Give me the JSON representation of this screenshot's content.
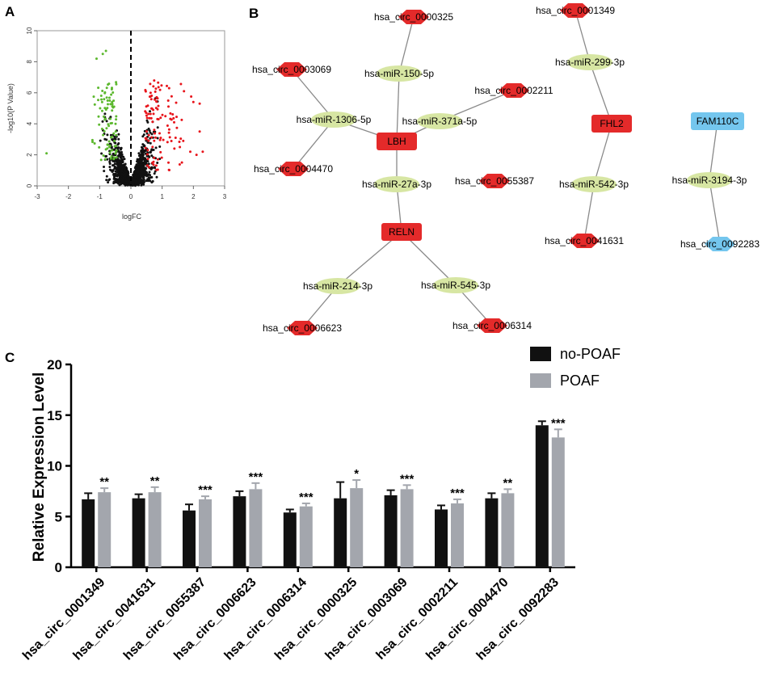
{
  "panels": {
    "a": "A",
    "b": "B",
    "c": "C"
  },
  "volcano": {
    "xlabel": "logFC",
    "ylabel": "-log10(P Value)",
    "xlim": [
      -3,
      3
    ],
    "ylim": [
      0,
      10
    ],
    "x_ticks": [
      -3,
      -2,
      -1,
      0,
      1,
      2,
      3
    ],
    "y_ticks": [
      0,
      2,
      4,
      6,
      8,
      10
    ],
    "threshold_logFC": 0,
    "colors": {
      "down": "#5cb82e",
      "up": "#e8141b",
      "ns": "#111111",
      "threshold": "#000000",
      "frame": "#999999"
    }
  },
  "network": {
    "colors": {
      "mrna_red": "#e42a2a",
      "mrna_blue": "#74c6ee",
      "circ_red": "#e42a2a",
      "circ_blue": "#74c6ee",
      "mirna": "#d7e6a3",
      "edge": "#8a8a8a"
    },
    "nodes": [
      {
        "id": "LBH",
        "label": "LBH",
        "kind": "mrna",
        "color": "red"
      },
      {
        "id": "RELN",
        "label": "RELN",
        "kind": "mrna",
        "color": "red"
      },
      {
        "id": "FHL2",
        "label": "FHL2",
        "kind": "mrna",
        "color": "red"
      },
      {
        "id": "FAM110C",
        "label": "FAM110C",
        "kind": "mrna",
        "color": "blue"
      },
      {
        "id": "m150",
        "label": "hsa-miR-150-5p",
        "kind": "mirna"
      },
      {
        "id": "m1306",
        "label": "hsa-miR-1306-5p",
        "kind": "mirna"
      },
      {
        "id": "m371",
        "label": "hsa-miR-371a-5p",
        "kind": "mirna"
      },
      {
        "id": "m27a",
        "label": "hsa-miR-27a-3p",
        "kind": "mirna"
      },
      {
        "id": "m214",
        "label": "hsa-miR-214-3p",
        "kind": "mirna"
      },
      {
        "id": "m545",
        "label": "hsa-miR-545-3p",
        "kind": "mirna"
      },
      {
        "id": "m299",
        "label": "hsa-miR-299-3p",
        "kind": "mirna"
      },
      {
        "id": "m542",
        "label": "hsa-miR-542-3p",
        "kind": "mirna"
      },
      {
        "id": "m3194",
        "label": "hsa-miR-3194-3p",
        "kind": "mirna"
      },
      {
        "id": "c0000325",
        "label": "hsa_circ_0000325",
        "kind": "circ",
        "color": "red"
      },
      {
        "id": "c0003069",
        "label": "hsa_circ_0003069",
        "kind": "circ",
        "color": "red"
      },
      {
        "id": "c0002211",
        "label": "hsa_circ_0002211",
        "kind": "circ",
        "color": "red"
      },
      {
        "id": "c0004470",
        "label": "hsa_circ_0004470",
        "kind": "circ",
        "color": "red"
      },
      {
        "id": "c0055387",
        "label": "hsa_circ_0055387",
        "kind": "circ",
        "color": "red"
      },
      {
        "id": "c0006623",
        "label": "hsa_circ_0006623",
        "kind": "circ",
        "color": "red"
      },
      {
        "id": "c0006314",
        "label": "hsa_circ_0006314",
        "kind": "circ",
        "color": "red"
      },
      {
        "id": "c0001349",
        "label": "hsa_circ_0001349",
        "kind": "circ",
        "color": "red"
      },
      {
        "id": "c0041631",
        "label": "hsa_circ_0041631",
        "kind": "circ",
        "color": "red"
      },
      {
        "id": "c0092283",
        "label": "hsa_circ_0092283",
        "kind": "circ",
        "color": "blue"
      }
    ],
    "edges": [
      [
        "c0000325",
        "m150"
      ],
      [
        "m150",
        "LBH"
      ],
      [
        "c0003069",
        "m1306"
      ],
      [
        "c0004470",
        "m1306"
      ],
      [
        "m1306",
        "LBH"
      ],
      [
        "c0002211",
        "m371"
      ],
      [
        "m371",
        "LBH"
      ],
      [
        "LBH",
        "m27a"
      ],
      [
        "m27a",
        "RELN"
      ],
      [
        "RELN",
        "m214"
      ],
      [
        "m214",
        "c0006623"
      ],
      [
        "RELN",
        "m545"
      ],
      [
        "m545",
        "c0006314"
      ],
      [
        "c0001349",
        "m299"
      ],
      [
        "m299",
        "FHL2"
      ],
      [
        "FHL2",
        "m542"
      ],
      [
        "m542",
        "c0041631"
      ],
      [
        "FAM110C",
        "m3194"
      ],
      [
        "m3194",
        "c0092283"
      ]
    ]
  },
  "chart_data": {
    "type": "bar",
    "ylabel": "Relative Expression Level",
    "xlabel": "",
    "ylim": [
      0,
      20
    ],
    "y_ticks": [
      0,
      5,
      10,
      15,
      20
    ],
    "categories": [
      "hsa_circ_0001349",
      "hsa_circ_0041631",
      "hsa_circ_0055387",
      "hsa_circ_0006623",
      "hsa_circ_0006314",
      "hsa_circ_0000325",
      "hsa_circ_0003069",
      "hsa_circ_0002211",
      "hsa_circ_0004470",
      "hsa_circ_0092283"
    ],
    "series": [
      {
        "name": "no-POAF",
        "color": "#111111",
        "values": [
          6.7,
          6.8,
          5.6,
          7.0,
          5.4,
          6.8,
          7.1,
          5.7,
          6.8,
          14.0
        ],
        "errors": [
          0.6,
          0.4,
          0.6,
          0.5,
          0.3,
          1.6,
          0.5,
          0.4,
          0.5,
          0.4
        ]
      },
      {
        "name": "POAF",
        "color": "#a3a6ad",
        "values": [
          7.4,
          7.4,
          6.7,
          7.7,
          6.0,
          7.8,
          7.7,
          6.3,
          7.3,
          12.8
        ],
        "errors": [
          0.4,
          0.5,
          0.3,
          0.6,
          0.3,
          0.8,
          0.4,
          0.4,
          0.4,
          0.8
        ]
      }
    ],
    "significance": [
      "**",
      "**",
      "***",
      "***",
      "***",
      "*",
      "***",
      "***",
      "**",
      "***"
    ],
    "legend": [
      "no-POAF",
      "POAF"
    ]
  }
}
